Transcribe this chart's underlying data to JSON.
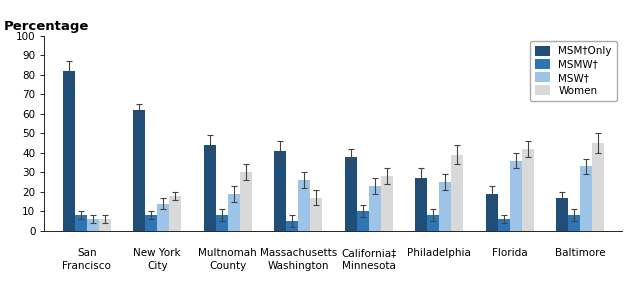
{
  "msm_only": [
    82,
    62,
    44,
    41,
    38,
    27,
    19,
    17
  ],
  "msmw": [
    8,
    8,
    8,
    5,
    10,
    8,
    6,
    8
  ],
  "msw": [
    6,
    14,
    19,
    26,
    23,
    25,
    36,
    33
  ],
  "women": [
    6,
    18,
    30,
    17,
    28,
    39,
    42,
    45
  ],
  "msm_only_err": [
    5,
    3,
    5,
    5,
    4,
    5,
    4,
    3
  ],
  "msmw_err": [
    2,
    2,
    3,
    3,
    3,
    3,
    2,
    3
  ],
  "msw_err": [
    2,
    3,
    4,
    4,
    4,
    4,
    4,
    4
  ],
  "women_err": [
    2,
    2,
    4,
    4,
    4,
    5,
    4,
    5
  ],
  "colors": {
    "msm_only": "#1F4E79",
    "msmw": "#2E75B6",
    "msw": "#9DC3E6",
    "women": "#D9D9D9"
  },
  "xlabels_line1": [
    "San",
    "New York",
    "Multnomah",
    "Massachusetts",
    "California‡",
    "Philadelphia",
    "Florida",
    "Baltimore"
  ],
  "xlabels_line2": [
    "Francisco",
    "City",
    "County",
    "Washington",
    "Minnesota",
    "",
    "",
    ""
  ],
  "legend_labels": [
    "MSM†Only",
    "MSMW†",
    "MSW†",
    "Women"
  ],
  "ylabel_title": "Percentage",
  "ylim": [
    0,
    100
  ],
  "yticks": [
    0,
    10,
    20,
    30,
    40,
    50,
    60,
    70,
    80,
    90,
    100
  ],
  "bar_width": 0.17,
  "tick_fontsize": 7.5,
  "legend_fontsize": 7.5,
  "label_fontsize": 7.5,
  "title_fontsize": 9.5
}
